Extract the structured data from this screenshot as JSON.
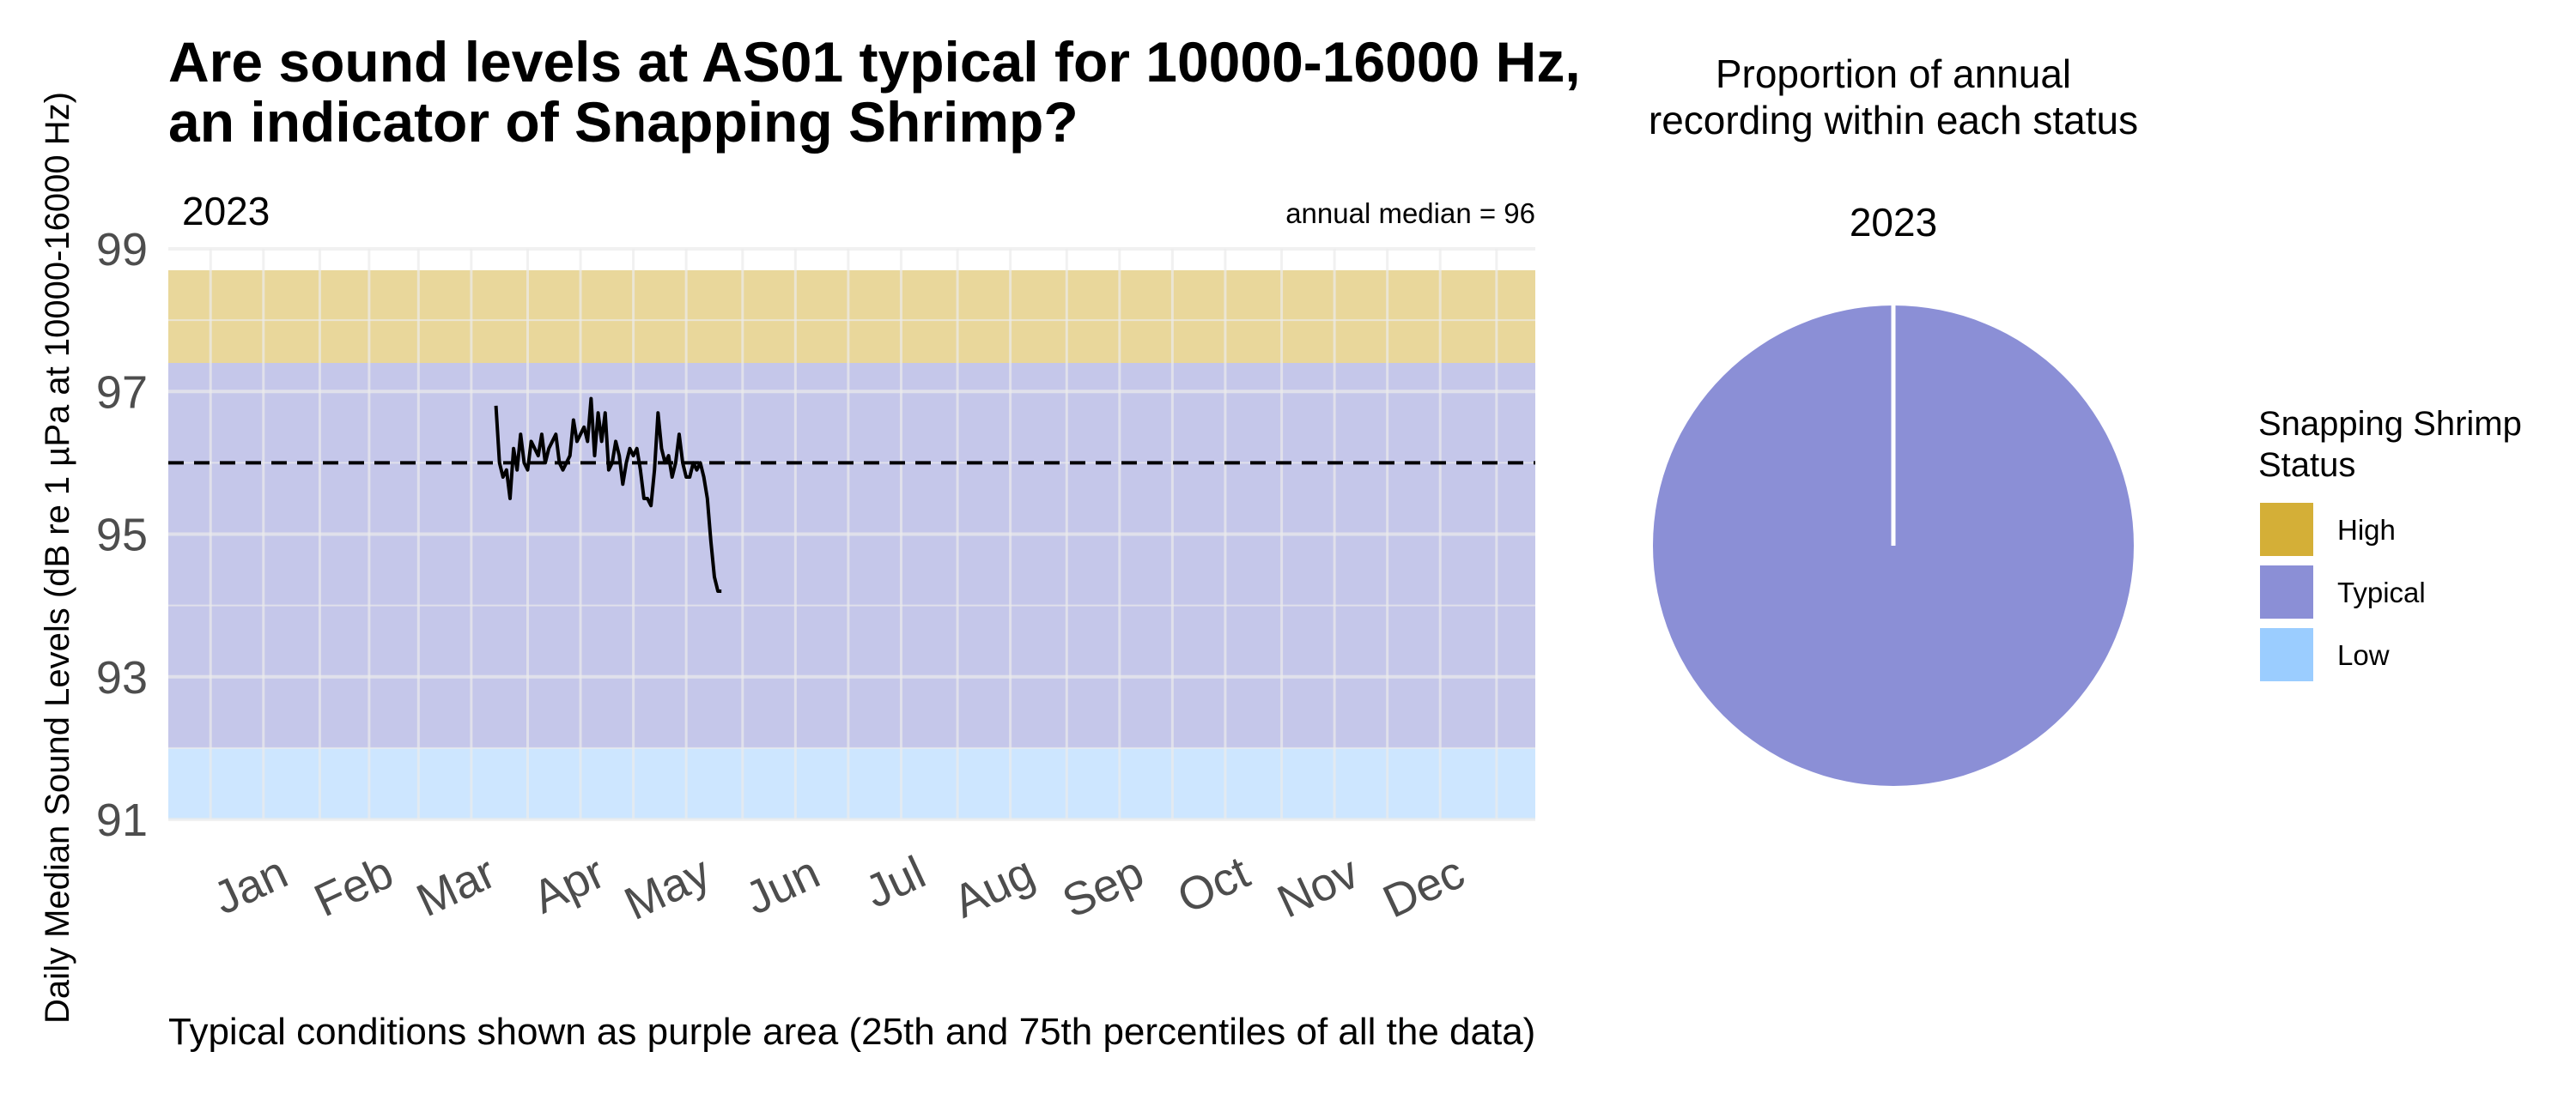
{
  "title_line1": "Are sound levels at AS01 typical for 10000-16000 Hz,",
  "title_line2": "an indicator of Snapping Shrimp?",
  "caption": "Typical conditions shown as purple area (25th and 75th percentiles of all the data)",
  "colors": {
    "high": "#D4AF37",
    "typical": "#8B8FD6",
    "low": "#9BCDFF",
    "line": "#000000",
    "median_line": "#000000",
    "grid": "#EBEBEB"
  },
  "chart_data": [
    {
      "type": "line",
      "facet": "2023",
      "annotation": "annual median = 96",
      "ylabel": "Daily Median Sound Levels (dB re 1 µPa at 10000-16000 Hz)",
      "xlabel": "",
      "ylim": [
        91,
        99
      ],
      "yticks": [
        91,
        93,
        95,
        97,
        99
      ],
      "x_months": [
        "Jan",
        "Feb",
        "Mar",
        "Apr",
        "May",
        "Jun",
        "Jul",
        "Aug",
        "Sep",
        "Oct",
        "Nov",
        "Dec"
      ],
      "bands": [
        {
          "name": "High",
          "from": 97.4,
          "to": 98.7
        },
        {
          "name": "Typical",
          "from": 92.0,
          "to": 97.4
        },
        {
          "name": "Low",
          "from": 91.0,
          "to": 92.0
        }
      ],
      "annual_median": 96,
      "grid": true,
      "series": [
        {
          "x": [
            "2023-03-23",
            "2023-03-24",
            "2023-03-25",
            "2023-03-26",
            "2023-03-27",
            "2023-03-28",
            "2023-03-29",
            "2023-03-30",
            "2023-03-31",
            "2023-04-01",
            "2023-04-02",
            "2023-04-03",
            "2023-04-04",
            "2023-04-05",
            "2023-04-06",
            "2023-04-07",
            "2023-04-08",
            "2023-04-09",
            "2023-04-10",
            "2023-04-11",
            "2023-04-12",
            "2023-04-13",
            "2023-04-14",
            "2023-04-15",
            "2023-04-16",
            "2023-04-17",
            "2023-04-18",
            "2023-04-19",
            "2023-04-20",
            "2023-04-21",
            "2023-04-22",
            "2023-04-23",
            "2023-04-24",
            "2023-04-25",
            "2023-04-26",
            "2023-04-27",
            "2023-04-28",
            "2023-04-29",
            "2023-04-30",
            "2023-05-01",
            "2023-05-02",
            "2023-05-03",
            "2023-05-04",
            "2023-05-05",
            "2023-05-06",
            "2023-05-07",
            "2023-05-08",
            "2023-05-09",
            "2023-05-10",
            "2023-05-11",
            "2023-05-12",
            "2023-05-13",
            "2023-05-14",
            "2023-05-15",
            "2023-05-16",
            "2023-05-17",
            "2023-05-18",
            "2023-05-19",
            "2023-05-20",
            "2023-05-21",
            "2023-05-22",
            "2023-05-23",
            "2023-05-24",
            "2023-05-25",
            "2023-05-26"
          ],
          "y": [
            96.8,
            96.0,
            95.8,
            95.9,
            95.5,
            96.2,
            95.9,
            96.4,
            96.0,
            95.9,
            96.3,
            96.2,
            96.1,
            96.4,
            96.0,
            96.2,
            96.3,
            96.4,
            96.0,
            95.9,
            96.0,
            96.1,
            96.6,
            96.3,
            96.4,
            96.5,
            96.3,
            96.9,
            96.1,
            96.7,
            96.3,
            96.7,
            95.9,
            96.0,
            96.3,
            96.1,
            95.7,
            96.0,
            96.2,
            96.1,
            96.2,
            95.9,
            95.5,
            95.5,
            95.4,
            95.9,
            96.7,
            96.2,
            96.0,
            96.1,
            95.8,
            96.0,
            96.4,
            96.0,
            95.8,
            95.8,
            96.0,
            95.9,
            96.0,
            95.8,
            95.5,
            94.9,
            94.4,
            94.2,
            94.2
          ]
        }
      ]
    },
    {
      "type": "pie",
      "title_line1": "Proportion of annual",
      "title_line2": "recording within each status",
      "facet": "2023",
      "slices": [
        {
          "name": "High",
          "value": 0.0
        },
        {
          "name": "Typical",
          "value": 100.0
        },
        {
          "name": "Low",
          "value": 0.0
        }
      ],
      "legend": {
        "title_line1": "Snapping Shrimp",
        "title_line2": "Status",
        "position": "right",
        "entries": [
          "High",
          "Typical",
          "Low"
        ]
      }
    }
  ]
}
